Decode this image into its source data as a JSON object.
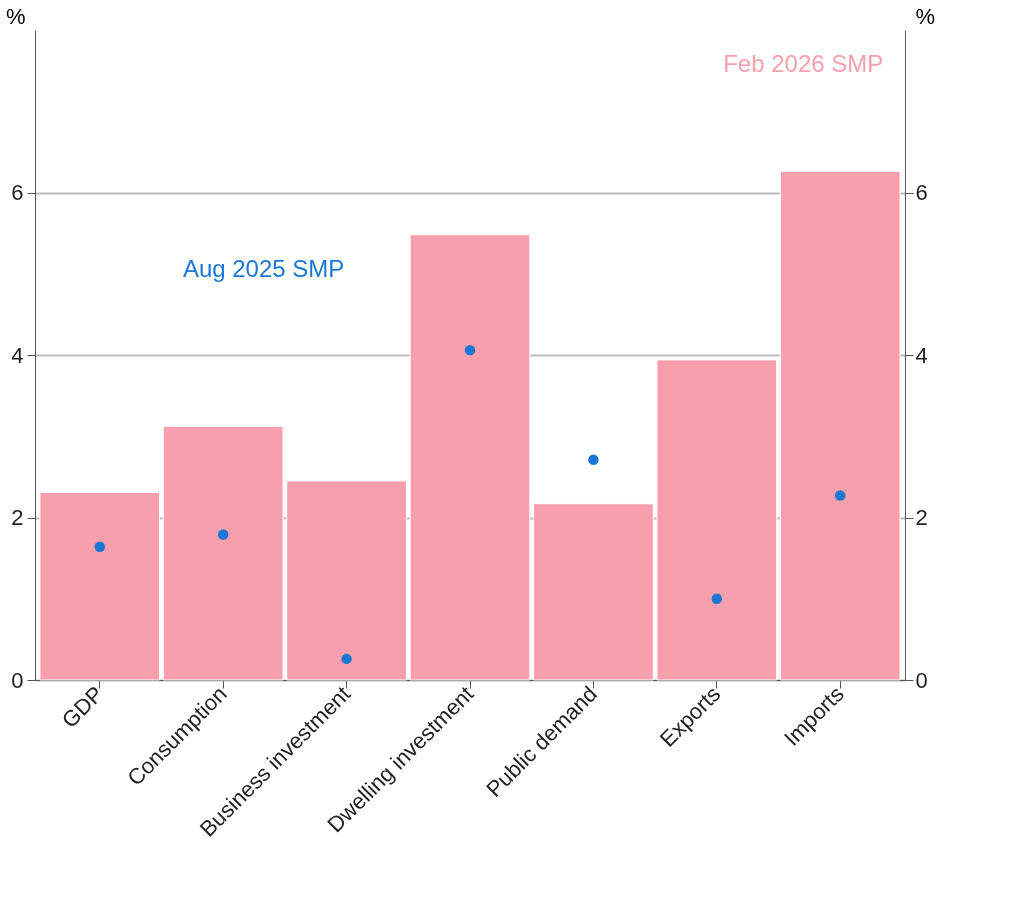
{
  "chart_data": {
    "type": "bar",
    "categories": [
      "GDP",
      "Consumption",
      "Business investment",
      "Dwelling investment",
      "Public demand",
      "Exports",
      "Imports"
    ],
    "series": [
      {
        "name": "Feb 2026 SMP",
        "color": "#f79fad",
        "values": [
          2.31,
          3.12,
          2.45,
          5.48,
          2.17,
          3.94,
          6.26
        ]
      },
      {
        "name": "Aug 2025 SMP",
        "type": "scatter",
        "color": "#1a78d4",
        "values": [
          1.64,
          1.79,
          0.26,
          4.06,
          2.71,
          1.0,
          2.27
        ]
      }
    ],
    "ylabel": "%",
    "y2label": "%",
    "ylim": [
      0,
      8
    ],
    "yticks": [
      0,
      2,
      4,
      6
    ],
    "y2lim": [
      0,
      8
    ],
    "y2ticks": [
      0,
      2,
      4,
      6
    ],
    "grid": "y",
    "legend": false,
    "marker": "circle"
  }
}
